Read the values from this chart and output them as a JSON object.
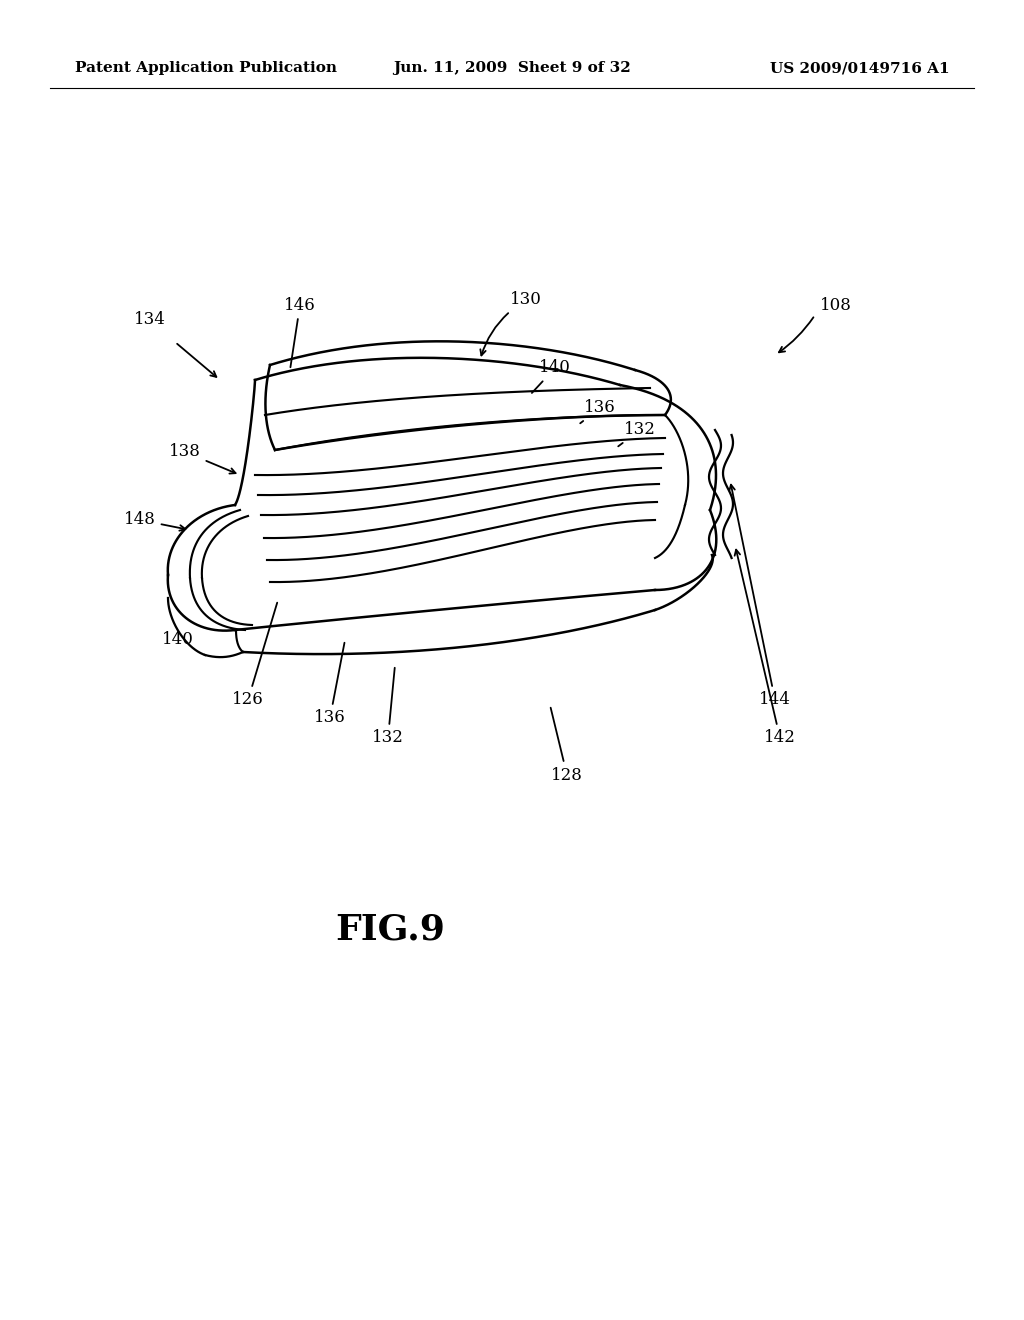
{
  "bg_color": "#ffffff",
  "header_left": "Patent Application Publication",
  "header_center": "Jun. 11, 2009  Sheet 9 of 32",
  "header_right": "US 2009/0149716 A1",
  "fig_label": "FIG.9",
  "line_color": "#000000",
  "line_width": 1.8,
  "fig_label_fontsize": 26,
  "header_fontsize": 11,
  "label_fontsize": 12
}
